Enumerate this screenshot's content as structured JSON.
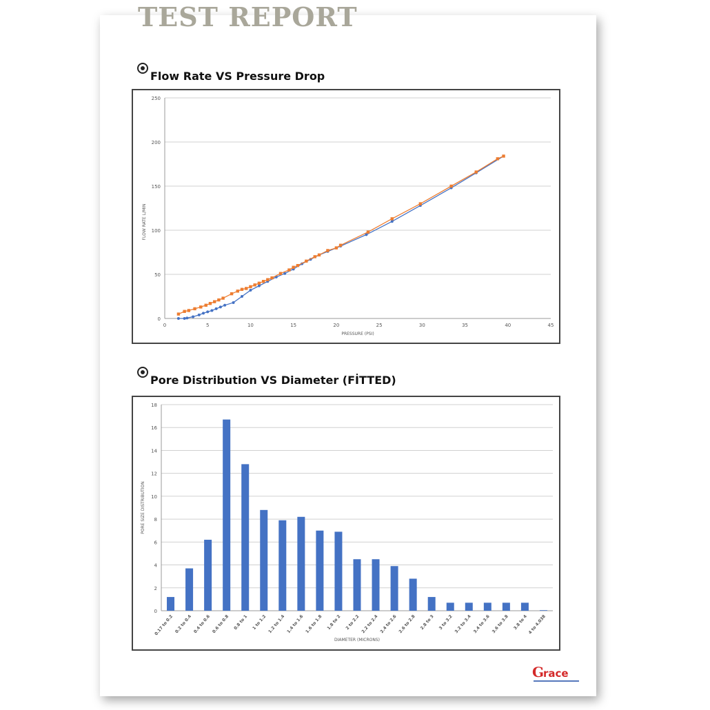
{
  "report_title": "TEST REPORT",
  "sections": [
    {
      "title": "Flow Rate VS Pressure Drop",
      "icon": "bullseye-icon"
    },
    {
      "title": "Pore Distribution VS Diameter (FİTTED)",
      "icon": "bullseye-icon"
    }
  ],
  "logo": {
    "text": "Grace"
  },
  "colors": {
    "blue": "#4472c4",
    "orange": "#ed7d31",
    "bar": "#4472c4"
  },
  "chart_data": [
    {
      "type": "line",
      "title": "Flow Rate VS Pressure Drop",
      "xlabel": "PRESSURE (PSI)",
      "ylabel": "FLOW RATE L/MIN",
      "xlim": [
        0,
        45
      ],
      "ylim": [
        0,
        250
      ],
      "xticks": [
        0,
        5,
        10,
        15,
        20,
        25,
        30,
        35,
        40,
        45
      ],
      "yticks": [
        0,
        50,
        100,
        150,
        200,
        250
      ],
      "grid": true,
      "series": [
        {
          "color": "#4472c4",
          "x": [
            1.6,
            2.3,
            2.6,
            3.3,
            4,
            4.5,
            5,
            5.5,
            6,
            6.5,
            7,
            8,
            9,
            10,
            11,
            12,
            13,
            14,
            15,
            16,
            17,
            18,
            19,
            20,
            20.5,
            23.5,
            26.5,
            29.8,
            33.4,
            36.3,
            39.5
          ],
          "y": [
            0,
            0,
            0.5,
            2,
            4,
            6,
            7.5,
            9,
            11,
            13,
            15,
            18,
            25,
            32,
            37,
            42,
            47,
            51,
            56,
            62,
            67,
            72,
            76,
            80,
            82,
            95,
            110,
            128,
            148,
            165,
            184
          ]
        },
        {
          "color": "#ed7d31",
          "x": [
            1.6,
            2.3,
            2.8,
            3.5,
            4.2,
            4.8,
            5.3,
            5.8,
            6.3,
            6.8,
            7.8,
            8.5,
            9,
            9.5,
            10,
            10.5,
            11,
            11.5,
            12,
            12.5,
            13.5,
            14.5,
            15,
            15.5,
            16.5,
            17.5,
            18,
            19,
            20,
            20.5,
            23.7,
            26.5,
            29.8,
            33.4,
            36.3,
            38.8,
            39.5
          ],
          "y": [
            5,
            8,
            9,
            11,
            13,
            15,
            17,
            19,
            21,
            23,
            28,
            31,
            33,
            34,
            36,
            38,
            40,
            42,
            44,
            46,
            51,
            55,
            58,
            60,
            65,
            70,
            72,
            77,
            80,
            83,
            98,
            113,
            130,
            150,
            166,
            181,
            184
          ]
        }
      ]
    },
    {
      "type": "bar",
      "title": "Pore Distribution VS Diameter (FİTTED)",
      "xlabel": "DIAMETER (MICRONS)",
      "ylabel": "PORE SIZE DISTRIBUTION",
      "ylim": [
        0,
        18
      ],
      "yticks": [
        0,
        2,
        4,
        6,
        8,
        10,
        12,
        14,
        16,
        18
      ],
      "grid": true,
      "categories": [
        "0.17 to 0.2",
        "0.2 to 0.4",
        "0.4 to 0.6",
        "0.6 to 0.8",
        "0.8 to 1",
        "1 to 1.2",
        "1.2 to 1.4",
        "1.4 to 1.6",
        "1.6 to 1.8",
        "1.8 to 2",
        "2 to 2.2",
        "2.2 to 2.4",
        "2.4 to 2.6",
        "2.6 to 2.8",
        "2.8 to 3",
        "3 to 3.2",
        "3.2 to 3.4",
        "3.4 to 3.6",
        "3.6 to 3.8",
        "3.8 to 4",
        "4 to 4.038"
      ],
      "values": [
        1.2,
        3.7,
        6.2,
        16.7,
        12.8,
        8.8,
        7.9,
        8.2,
        7.0,
        6.9,
        4.5,
        4.5,
        3.9,
        2.8,
        1.2,
        0.7,
        0.7,
        0.7,
        0.7,
        0.7,
        0.05
      ]
    }
  ]
}
